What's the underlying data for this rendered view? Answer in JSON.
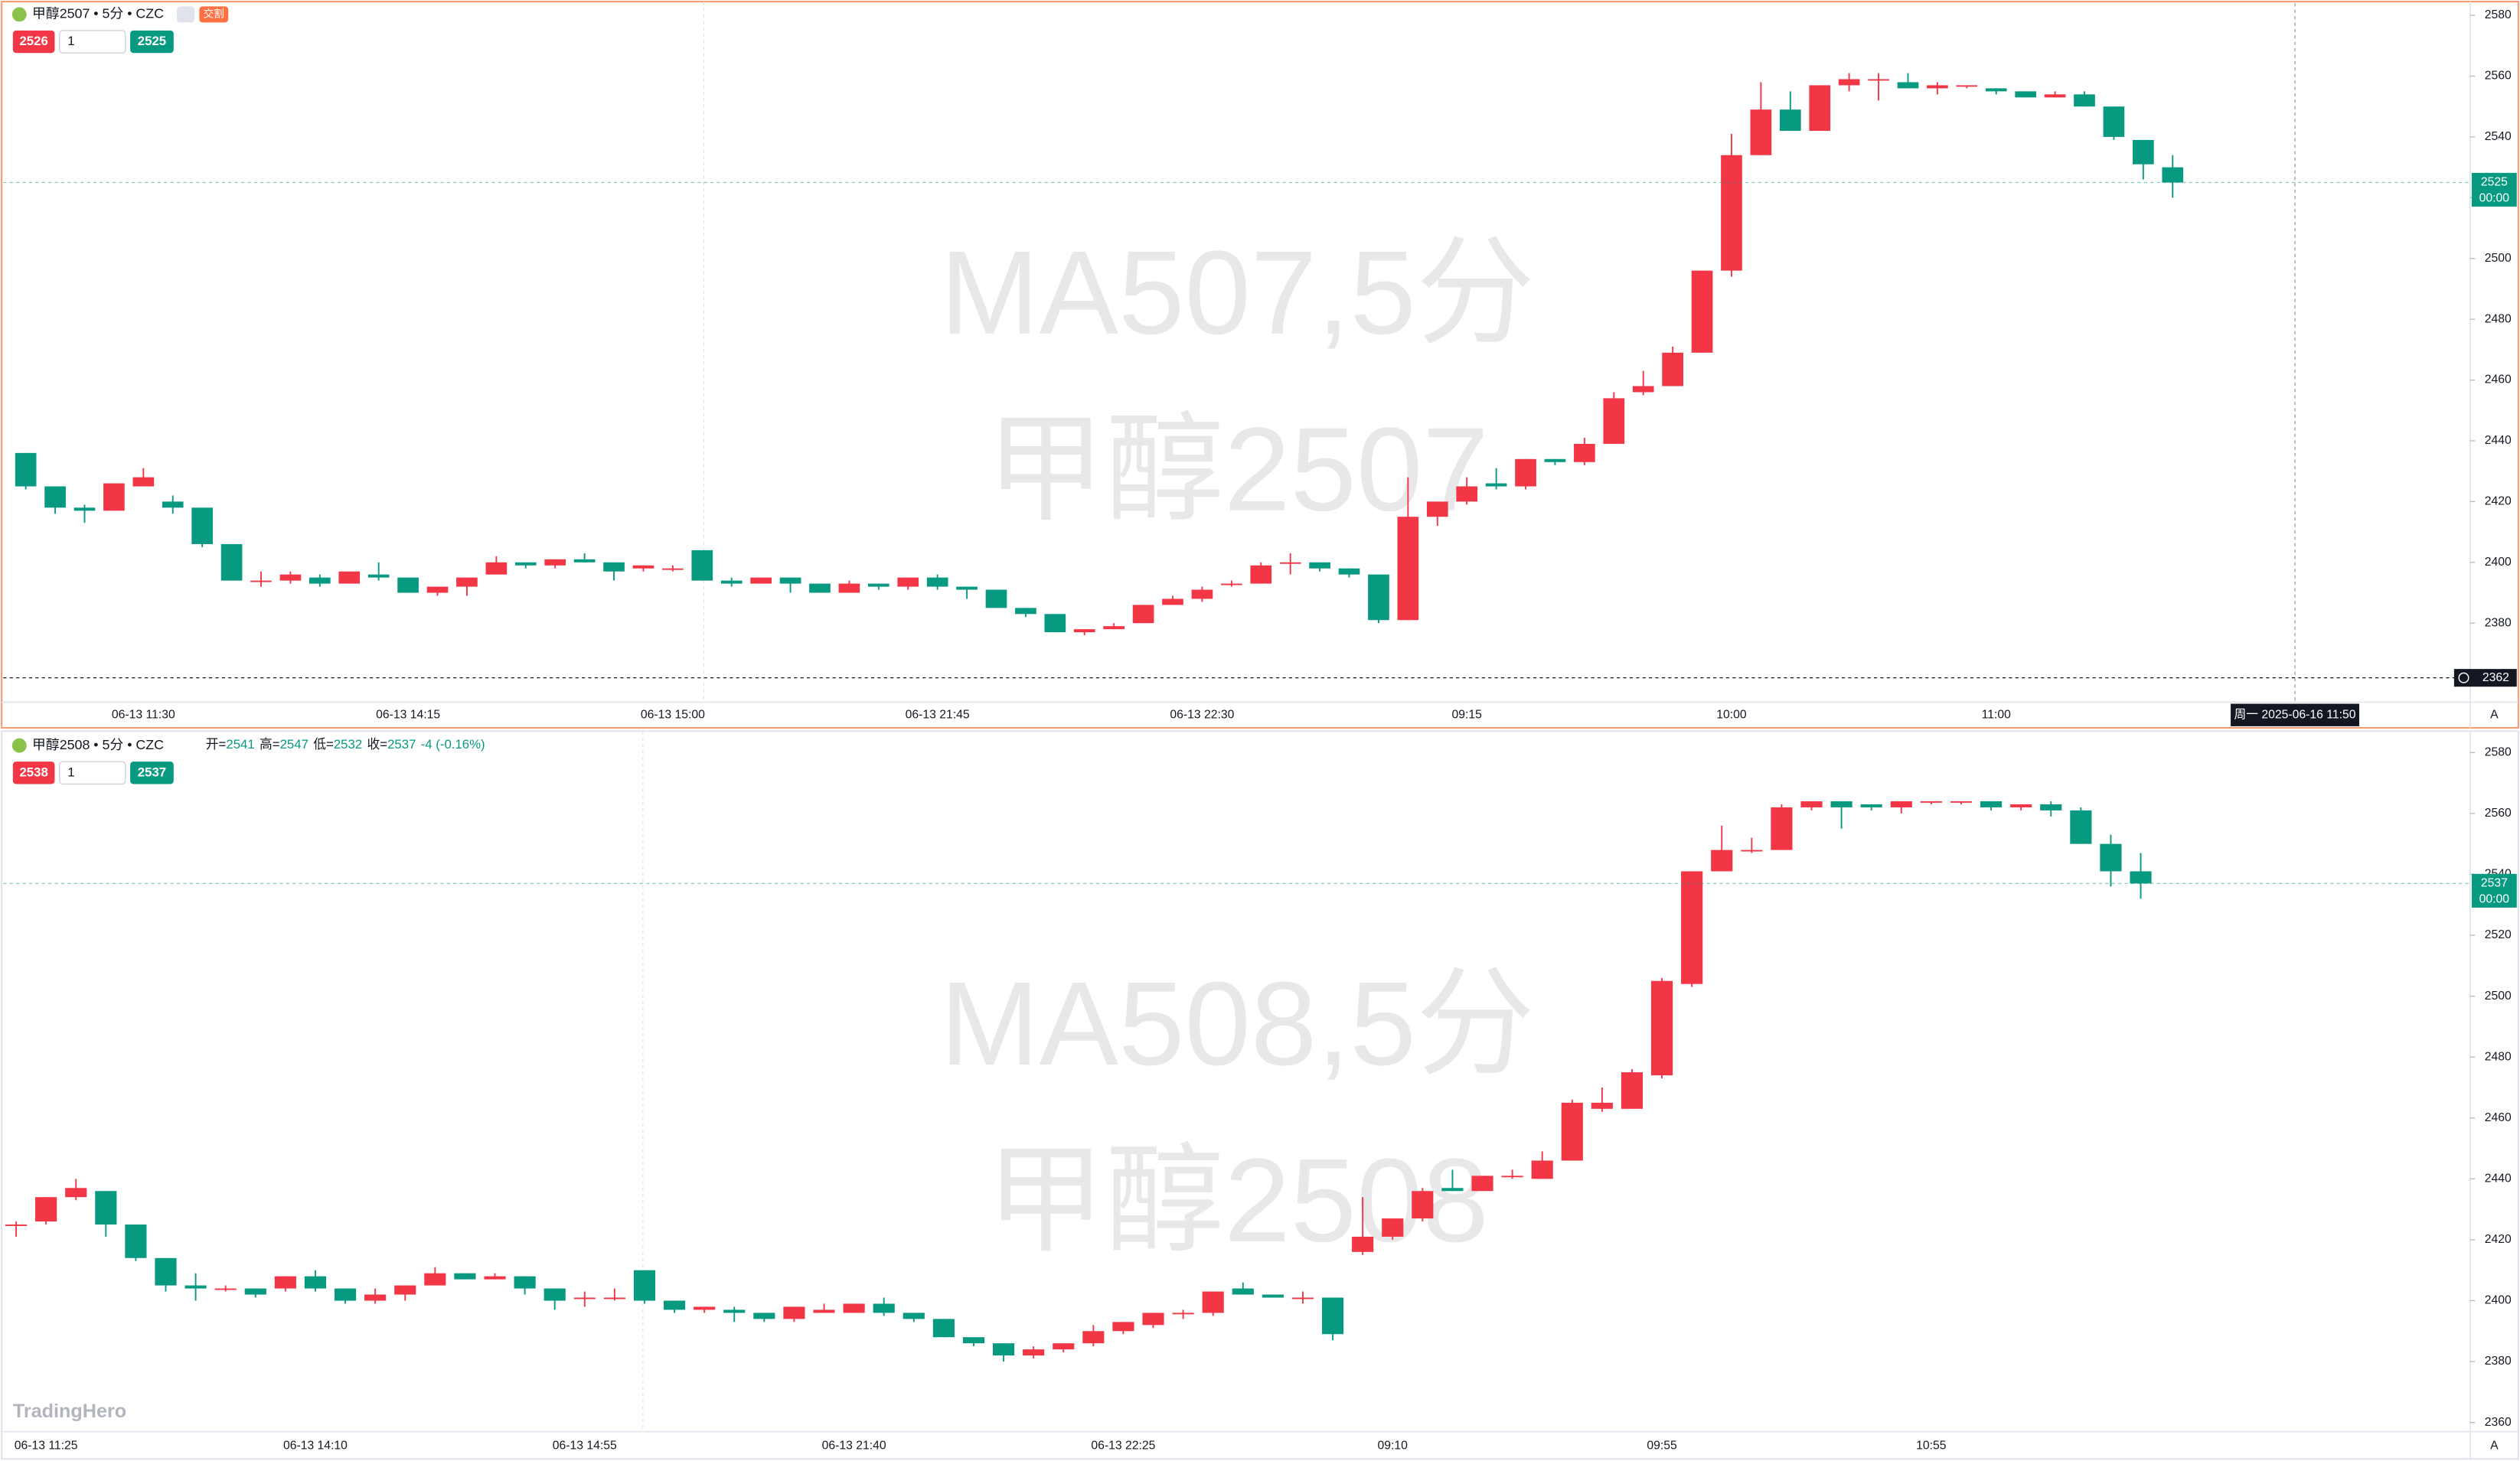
{
  "logo": "TradingHero",
  "chart_data": [
    {
      "type": "candlestick",
      "title": "甲醇2507 • 5分 • CZC",
      "badge": "交割",
      "watermark": [
        "MA507,5分",
        "甲醇2507"
      ],
      "trade_buttons": [
        2526,
        1,
        2525
      ],
      "countdown": "00:00",
      "auto_button": "A",
      "crosshair": {
        "price": 2362,
        "time_label": "周一 2025-06-16  11:50"
      },
      "colors": {
        "up": "#f23645",
        "down": "#089981"
      },
      "ylim": [
        2354,
        2584
      ],
      "yticks": [
        2380,
        2400,
        2420,
        2440,
        2460,
        2480,
        2500,
        2520,
        2540,
        2560,
        2580
      ],
      "categories": [
        null,
        null,
        null,
        null,
        "06-13 11:30",
        null,
        null,
        null,
        null,
        null,
        null,
        null,
        null,
        "06-13 14:15",
        null,
        null,
        null,
        null,
        null,
        null,
        null,
        null,
        "06-13 15:00",
        null,
        null,
        null,
        null,
        null,
        null,
        null,
        null,
        "06-13 21:45",
        null,
        null,
        null,
        null,
        null,
        null,
        null,
        null,
        "06-13 22:30",
        null,
        null,
        null,
        null,
        null,
        null,
        null,
        null,
        "09:15",
        null,
        null,
        null,
        null,
        null,
        null,
        null,
        null,
        "10:00",
        null,
        null,
        null,
        null,
        null,
        null,
        null,
        null,
        "11:00",
        null,
        null,
        null,
        null,
        null,
        null
      ],
      "open": [
        2436,
        2425,
        2418,
        2417,
        2425,
        2420,
        2418,
        2406,
        2394,
        2394,
        2395,
        2393,
        2396,
        2395,
        2390,
        2392,
        2396,
        2400,
        2399,
        2401,
        2400,
        2398,
        2398,
        2404,
        2394,
        2393,
        2395,
        2393,
        2390,
        2393,
        2392,
        2395,
        2392,
        2391,
        2385,
        2383,
        2377,
        2378,
        2380,
        2386,
        2388,
        2393,
        2393,
        2400,
        2400,
        2398,
        2396,
        2381,
        2415,
        2420,
        2426,
        2425,
        2434,
        2433,
        2439,
        2456,
        2458,
        2469,
        2496,
        2534,
        2549,
        2542,
        2557,
        2559,
        2558,
        2556,
        2557,
        2556,
        2555,
        2553,
        2554,
        2550,
        2539,
        2530
      ],
      "high": [
        2436,
        2425,
        2419,
        2426,
        2431,
        2422,
        2418,
        2406,
        2397,
        2397,
        2396,
        2397,
        2400,
        2395,
        2392,
        2395,
        2402,
        2400,
        2401,
        2403,
        2400,
        2399,
        2399,
        2404,
        2395,
        2395,
        2395,
        2393,
        2394,
        2393,
        2395,
        2396,
        2392,
        2391,
        2385,
        2383,
        2378,
        2380,
        2386,
        2389,
        2392,
        2394,
        2400,
        2403,
        2400,
        2398,
        2396,
        2428,
        2420,
        2428,
        2431,
        2434,
        2434,
        2441,
        2456,
        2463,
        2471,
        2496,
        2541,
        2558,
        2555,
        2557,
        2561,
        2561,
        2561,
        2558,
        2557,
        2556,
        2555,
        2555,
        2555,
        2550,
        2539,
        2534
      ],
      "low": [
        2424,
        2416,
        2413,
        2417,
        2425,
        2416,
        2405,
        2394,
        2392,
        2393,
        2392,
        2393,
        2394,
        2390,
        2389,
        2389,
        2396,
        2398,
        2398,
        2400,
        2394,
        2397,
        2397,
        2394,
        2392,
        2393,
        2390,
        2390,
        2390,
        2391,
        2391,
        2391,
        2388,
        2385,
        2382,
        2377,
        2376,
        2378,
        2380,
        2386,
        2387,
        2392,
        2393,
        2396,
        2397,
        2395,
        2380,
        2381,
        2412,
        2419,
        2424,
        2424,
        2432,
        2432,
        2439,
        2455,
        2458,
        2469,
        2494,
        2534,
        2542,
        2542,
        2555,
        2552,
        2556,
        2554,
        2556,
        2554,
        2553,
        2553,
        2550,
        2539,
        2526,
        2520
      ],
      "close": [
        2425,
        2418,
        2417,
        2426,
        2428,
        2418,
        2406,
        2394,
        2394,
        2396,
        2393,
        2397,
        2395,
        2390,
        2392,
        2395,
        2400,
        2399,
        2401,
        2400,
        2397,
        2399,
        2398,
        2394,
        2393,
        2395,
        2393,
        2390,
        2393,
        2392,
        2395,
        2392,
        2391,
        2385,
        2383,
        2377,
        2378,
        2379,
        2386,
        2388,
        2391,
        2393,
        2399,
        2400,
        2398,
        2396,
        2381,
        2415,
        2420,
        2425,
        2425,
        2434,
        2433,
        2439,
        2454,
        2458,
        2469,
        2496,
        2534,
        2549,
        2542,
        2557,
        2559,
        2559,
        2556,
        2557,
        2557,
        2555,
        2553,
        2554,
        2550,
        2540,
        2531,
        2525
      ]
    },
    {
      "type": "candlestick",
      "title": "甲醇2508 • 5分 • CZC",
      "legend": {
        "labels": [
          "开=",
          "高=",
          "低=",
          "收="
        ],
        "change_label": "-4 (-0.16%)"
      },
      "watermark": [
        "MA508,5分",
        "甲醇2508"
      ],
      "trade_buttons": [
        2538,
        1,
        2537
      ],
      "countdown": "00:00",
      "auto_button": "A",
      "colors": {
        "up": "#f23645",
        "down": "#089981"
      },
      "ylim": [
        2357,
        2586
      ],
      "yticks": [
        2360,
        2380,
        2400,
        2420,
        2440,
        2460,
        2480,
        2500,
        2520,
        2540,
        2560,
        2580
      ],
      "categories": [
        null,
        "06-13 11:25",
        null,
        null,
        null,
        null,
        null,
        null,
        null,
        null,
        "06-13 14:10",
        null,
        null,
        null,
        null,
        null,
        null,
        null,
        null,
        "06-13 14:55",
        null,
        null,
        null,
        null,
        null,
        null,
        null,
        null,
        "06-13 21:40",
        null,
        null,
        null,
        null,
        null,
        null,
        null,
        null,
        "06-13 22:25",
        null,
        null,
        null,
        null,
        null,
        null,
        null,
        null,
        "09:10",
        null,
        null,
        null,
        null,
        null,
        null,
        null,
        null,
        "09:55",
        null,
        null,
        null,
        null,
        null,
        null,
        null,
        null,
        "10:55",
        null,
        null,
        null,
        null,
        null,
        null,
        null
      ],
      "open": [
        2425,
        2426,
        2434,
        2436,
        2425,
        2414,
        2405,
        2404,
        2404,
        2404,
        2408,
        2404,
        2400,
        2402,
        2405,
        2409,
        2407,
        2408,
        2404,
        2401,
        2401,
        2410,
        2400,
        2397,
        2397,
        2396,
        2394,
        2396,
        2396,
        2399,
        2396,
        2394,
        2388,
        2386,
        2382,
        2384,
        2386,
        2390,
        2392,
        2396,
        2396,
        2404,
        2402,
        2401,
        2401,
        2416,
        2421,
        2427,
        2437,
        2436,
        2441,
        2440,
        2446,
        2463,
        2463,
        2474,
        2504,
        2541,
        2548,
        2548,
        2562,
        2564,
        2563,
        2562,
        2564,
        2564,
        2564,
        2562,
        2563,
        2561,
        2550,
        2541
      ],
      "high": [
        2426,
        2434,
        2440,
        2436,
        2425,
        2414,
        2409,
        2405,
        2404,
        2408,
        2410,
        2404,
        2404,
        2405,
        2411,
        2409,
        2409,
        2408,
        2404,
        2403,
        2404,
        2410,
        2400,
        2398,
        2398,
        2396,
        2398,
        2399,
        2399,
        2401,
        2396,
        2394,
        2388,
        2386,
        2385,
        2386,
        2392,
        2393,
        2396,
        2397,
        2403,
        2406,
        2402,
        2403,
        2401,
        2434,
        2427,
        2437,
        2443,
        2441,
        2443,
        2449,
        2466,
        2470,
        2476,
        2506,
        2541,
        2556,
        2552,
        2563,
        2564,
        2564,
        2563,
        2564,
        2564,
        2564,
        2564,
        2563,
        2564,
        2562,
        2553,
        2547
      ],
      "low": [
        2421,
        2425,
        2433,
        2421,
        2413,
        2403,
        2400,
        2403,
        2401,
        2403,
        2403,
        2399,
        2399,
        2400,
        2405,
        2407,
        2407,
        2402,
        2397,
        2398,
        2400,
        2399,
        2396,
        2396,
        2393,
        2393,
        2393,
        2396,
        2396,
        2395,
        2393,
        2388,
        2385,
        2380,
        2381,
        2383,
        2385,
        2389,
        2391,
        2394,
        2395,
        2402,
        2401,
        2399,
        2387,
        2415,
        2420,
        2426,
        2436,
        2436,
        2440,
        2440,
        2446,
        2462,
        2463,
        2473,
        2503,
        2541,
        2547,
        2548,
        2561,
        2555,
        2561,
        2560,
        2563,
        2563,
        2561,
        2561,
        2559,
        2550,
        2536,
        2532
      ],
      "close": [
        2425,
        2434,
        2437,
        2425,
        2414,
        2405,
        2404,
        2404,
        2402,
        2408,
        2404,
        2400,
        2402,
        2405,
        2409,
        2407,
        2408,
        2404,
        2400,
        2401,
        2401,
        2400,
        2397,
        2398,
        2396,
        2394,
        2398,
        2397,
        2399,
        2396,
        2394,
        2388,
        2386,
        2382,
        2384,
        2386,
        2390,
        2393,
        2396,
        2396,
        2403,
        2402,
        2401,
        2401,
        2389,
        2421,
        2427,
        2436,
        2436,
        2441,
        2441,
        2446,
        2465,
        2465,
        2475,
        2505,
        2541,
        2548,
        2548,
        2562,
        2564,
        2562,
        2562,
        2564,
        2564,
        2564,
        2562,
        2563,
        2561,
        2550,
        2541,
        2537
      ]
    }
  ]
}
